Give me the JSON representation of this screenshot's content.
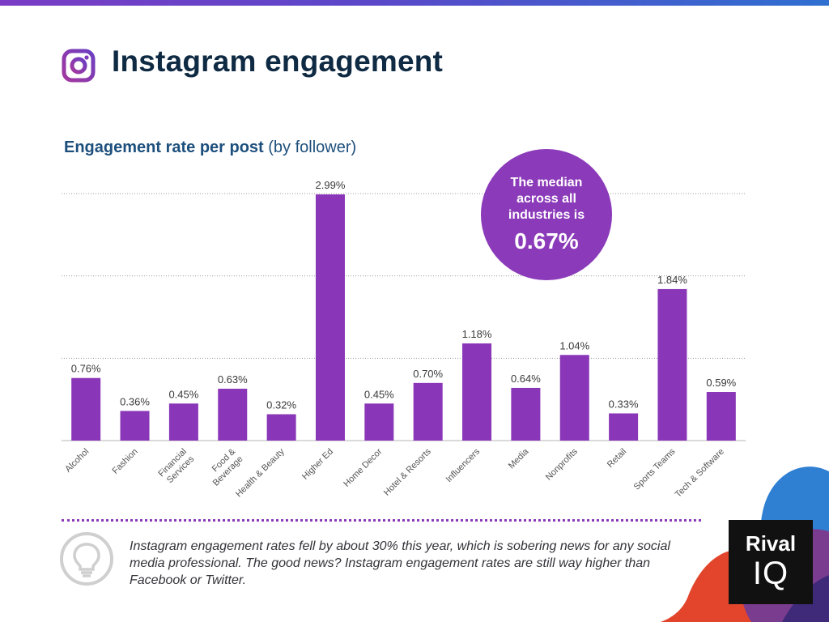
{
  "header": {
    "title": "Instagram engagement",
    "subtitle_bold": "Engagement rate per post",
    "subtitle_rest": " (by follower)"
  },
  "median_badge": {
    "line1": "The median across all industries is",
    "value": "0.67%"
  },
  "footnote": "Instagram engagement rates fell by about 30% this year, which is sobering news for any social media professional. The good news? Instagram engagement rates are still way higher than Facebook or Twitter.",
  "logo": {
    "line1": "Rival",
    "line2": "IQ"
  },
  "colors": {
    "bar": "#8a36b8",
    "title": "#0f2a43",
    "subtitle": "#1d4f7c",
    "median_badge": "#8b3ab9"
  },
  "icons": [
    "instagram-icon",
    "lightbulb-icon"
  ],
  "chart_data": {
    "type": "bar",
    "title": "Engagement rate per post (by follower)",
    "categories": [
      "Alcohol",
      "Fashion",
      "Financial Services",
      "Food & Beverage",
      "Health & Beauty",
      "Higher Ed",
      "Home Decor",
      "Hotel & Resorts",
      "Influencers",
      "Media",
      "Nonprofits",
      "Retail",
      "Sports Teams",
      "Tech & Software"
    ],
    "values": [
      0.76,
      0.36,
      0.45,
      0.63,
      0.32,
      2.99,
      0.45,
      0.7,
      1.18,
      0.64,
      1.04,
      0.33,
      1.84,
      0.59
    ],
    "labels": [
      "0.76%",
      "0.36%",
      "0.45%",
      "0.63%",
      "0.32%",
      "2.99%",
      "0.45%",
      "0.70%",
      "1.18%",
      "0.64%",
      "1.04%",
      "0.33%",
      "1.84%",
      "0.59%"
    ],
    "ylim": [
      0,
      3
    ],
    "y_unit": "%",
    "grid": true,
    "y_tick_labels_shown": false
  }
}
